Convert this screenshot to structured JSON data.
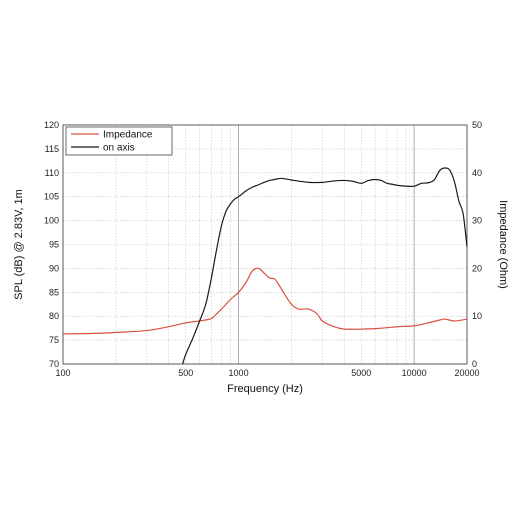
{
  "chart_data": {
    "type": "line",
    "title": "",
    "xlabel": "Frequency (Hz)",
    "ylabel": "SPL (dB) @ 2.83V, 1m",
    "y2label": "Impedance (Ohm)",
    "xscale": "log",
    "xlim": [
      100,
      20000
    ],
    "ylim": [
      70,
      120
    ],
    "y2lim": [
      0,
      50
    ],
    "grid": true,
    "legend_position": "top-left",
    "x_tick_labels": [
      {
        "value": 100,
        "label": "100"
      },
      {
        "value": 500,
        "label": "500"
      },
      {
        "value": 1000,
        "label": "1000"
      },
      {
        "value": 5000,
        "label": "5000"
      },
      {
        "value": 10000,
        "label": "10000"
      },
      {
        "value": 20000,
        "label": "20000"
      }
    ],
    "y_ticks": [
      70,
      75,
      80,
      85,
      90,
      95,
      100,
      105,
      110,
      115,
      120
    ],
    "y2_ticks": [
      0,
      10,
      20,
      30,
      40,
      50
    ],
    "series": [
      {
        "name": "Impedance",
        "axis": "right",
        "color": "#d9523f",
        "x": [
          100,
          150,
          200,
          300,
          400,
          500,
          600,
          700,
          750,
          800,
          900,
          1000,
          1100,
          1200,
          1300,
          1400,
          1500,
          1600,
          1700,
          1800,
          2000,
          2200,
          2500,
          2800,
          3000,
          3500,
          4000,
          5000,
          6000,
          7000,
          8000,
          10000,
          12000,
          14000,
          15000,
          17000,
          20000
        ],
        "values": [
          6.3,
          6.4,
          6.6,
          7.0,
          7.8,
          8.6,
          9.0,
          9.5,
          10.5,
          11.5,
          13.5,
          15.0,
          17.0,
          19.5,
          20.0,
          19.0,
          18.0,
          17.8,
          16.5,
          15.0,
          12.5,
          11.5,
          11.5,
          10.5,
          9.0,
          7.8,
          7.3,
          7.3,
          7.4,
          7.6,
          7.8,
          8.0,
          8.6,
          9.2,
          9.4,
          9.0,
          9.4
        ]
      },
      {
        "name": "on axis",
        "axis": "left",
        "color": "#1a1a1a",
        "x": [
          480,
          500,
          550,
          600,
          650,
          700,
          750,
          800,
          850,
          900,
          950,
          1000,
          1100,
          1200,
          1300,
          1400,
          1500,
          1600,
          1700,
          1800,
          2000,
          2500,
          3000,
          3500,
          4000,
          4500,
          5000,
          5500,
          6000,
          6500,
          7000,
          7500,
          8000,
          9000,
          10000,
          11000,
          12000,
          13000,
          14000,
          15000,
          16000,
          17000,
          18000,
          19000,
          20000
        ],
        "values": [
          70.0,
          72.0,
          75.5,
          79.0,
          82.5,
          88.0,
          94.0,
          99.0,
          102.0,
          103.5,
          104.5,
          105.0,
          106.2,
          107.0,
          107.5,
          108.0,
          108.4,
          108.6,
          108.8,
          108.8,
          108.5,
          108.0,
          108.0,
          108.3,
          108.4,
          108.2,
          107.8,
          108.4,
          108.6,
          108.4,
          107.8,
          107.6,
          107.4,
          107.2,
          107.2,
          107.8,
          107.9,
          108.5,
          110.5,
          111.0,
          110.5,
          108.0,
          104.0,
          101.5,
          94.5
        ]
      }
    ]
  }
}
